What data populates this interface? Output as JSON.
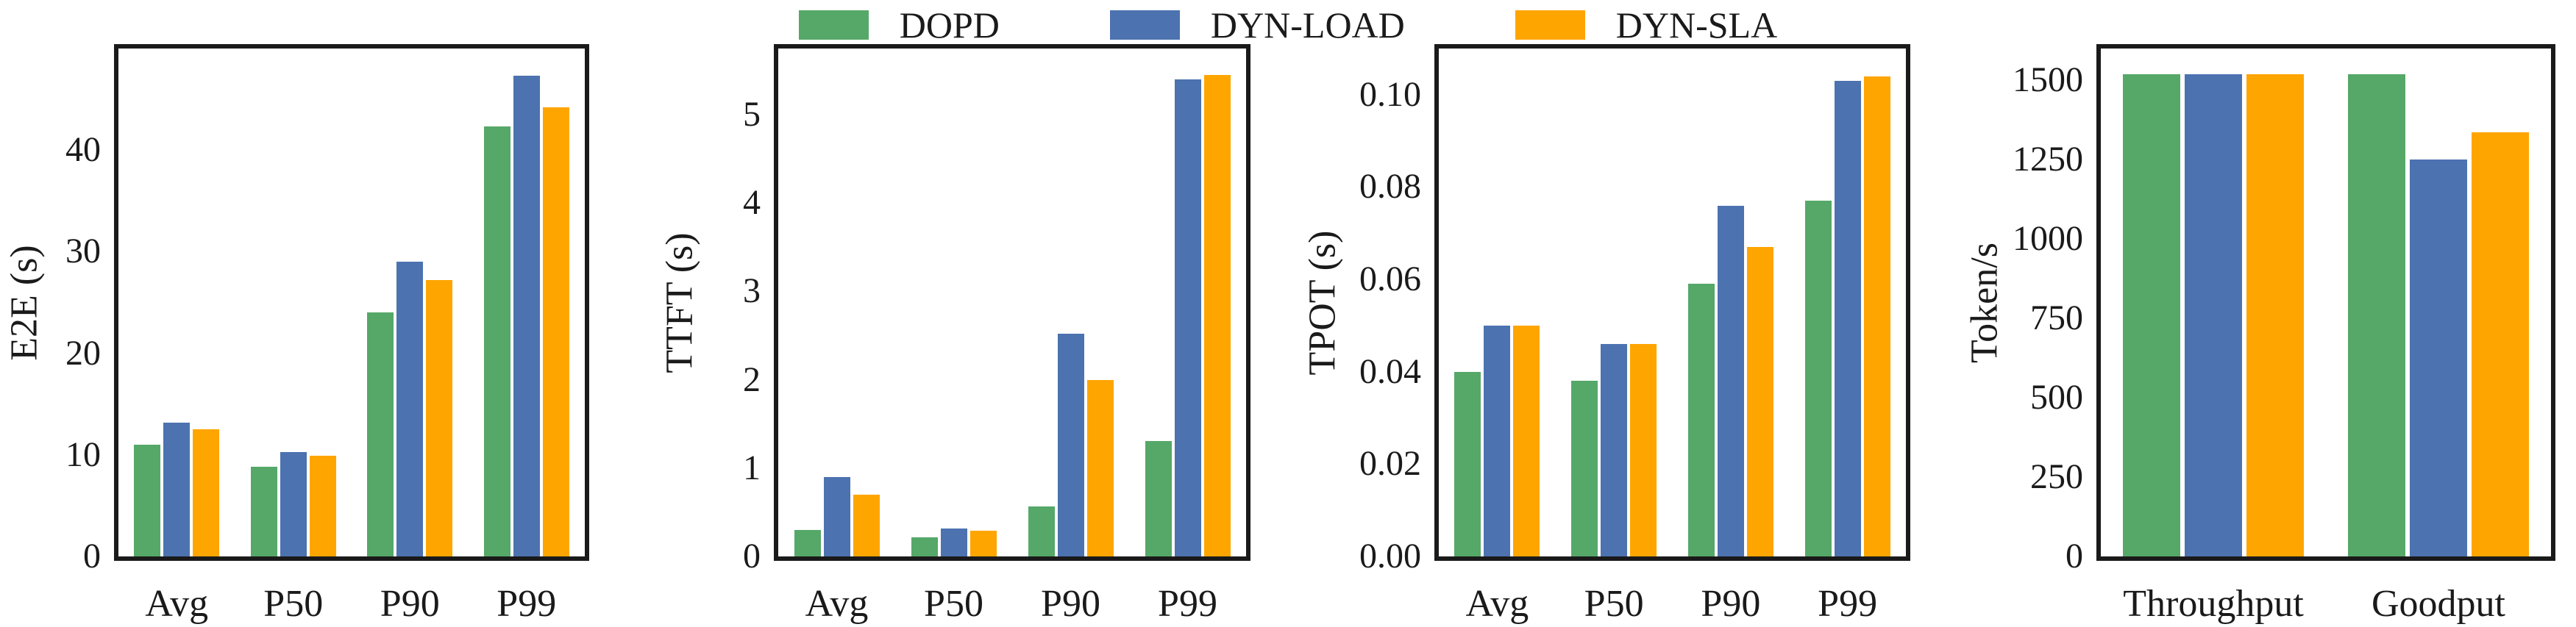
{
  "legend": {
    "position": "top-center",
    "items": [
      {
        "label": "DOPD",
        "color": "#55A868"
      },
      {
        "label": "DYN-LOAD",
        "color": "#4C72B0"
      },
      {
        "label": "DYN-SLA",
        "color": "#FFA500"
      }
    ]
  },
  "colors": {
    "dopd": "#55A868",
    "dyn_load": "#4C72B0",
    "dyn_sla": "#FFA500",
    "spine": "#1a1a1a",
    "text": "#1a1a1a",
    "background": "#ffffff"
  },
  "chart_data": [
    {
      "type": "bar",
      "title": "",
      "xlabel": "",
      "ylabel": "E2E (s)",
      "categories": [
        "Avg",
        "P50",
        "P90",
        "P99"
      ],
      "series": [
        {
          "name": "DOPD",
          "color": "#55A868",
          "values": [
            11.0,
            8.8,
            24.0,
            42.3
          ]
        },
        {
          "name": "DYN-LOAD",
          "color": "#4C72B0",
          "values": [
            13.2,
            10.3,
            29.0,
            47.3
          ]
        },
        {
          "name": "DYN-SLA",
          "color": "#FFA500",
          "values": [
            12.5,
            9.9,
            27.2,
            44.2
          ]
        }
      ],
      "ylim": [
        0,
        50
      ],
      "yticks": [
        {
          "v": 0,
          "label": "0"
        },
        {
          "v": 10,
          "label": "10"
        },
        {
          "v": 20,
          "label": "20"
        },
        {
          "v": 30,
          "label": "30"
        },
        {
          "v": 40,
          "label": "40"
        }
      ],
      "grid": false,
      "legend_position": "top-center-shared"
    },
    {
      "type": "bar",
      "title": "",
      "xlabel": "",
      "ylabel": "TTFT (s)",
      "categories": [
        "Avg",
        "P50",
        "P90",
        "P99"
      ],
      "series": [
        {
          "name": "DOPD",
          "color": "#55A868",
          "values": [
            0.3,
            0.22,
            0.57,
            1.31
          ]
        },
        {
          "name": "DYN-LOAD",
          "color": "#4C72B0",
          "values": [
            0.9,
            0.32,
            2.52,
            5.4
          ]
        },
        {
          "name": "DYN-SLA",
          "color": "#FFA500",
          "values": [
            0.7,
            0.29,
            2.0,
            5.45
          ]
        }
      ],
      "ylim": [
        0,
        5.75
      ],
      "yticks": [
        {
          "v": 0,
          "label": "0"
        },
        {
          "v": 1,
          "label": "1"
        },
        {
          "v": 2,
          "label": "2"
        },
        {
          "v": 3,
          "label": "3"
        },
        {
          "v": 4,
          "label": "4"
        },
        {
          "v": 5,
          "label": "5"
        }
      ],
      "grid": false,
      "legend_position": "top-center-shared"
    },
    {
      "type": "bar",
      "title": "",
      "xlabel": "",
      "ylabel": "TPOT (s)",
      "categories": [
        "Avg",
        "P50",
        "P90",
        "P99"
      ],
      "series": [
        {
          "name": "DOPD",
          "color": "#55A868",
          "values": [
            0.04,
            0.038,
            0.059,
            0.077
          ]
        },
        {
          "name": "DYN-LOAD",
          "color": "#4C72B0",
          "values": [
            0.05,
            0.046,
            0.076,
            0.103
          ]
        },
        {
          "name": "DYN-SLA",
          "color": "#FFA500",
          "values": [
            0.05,
            0.046,
            0.067,
            0.104
          ]
        }
      ],
      "ylim": [
        0,
        0.11
      ],
      "yticks": [
        {
          "v": 0,
          "label": "0.00"
        },
        {
          "v": 0.02,
          "label": "0.02"
        },
        {
          "v": 0.04,
          "label": "0.04"
        },
        {
          "v": 0.06,
          "label": "0.06"
        },
        {
          "v": 0.08,
          "label": "0.08"
        },
        {
          "v": 0.1,
          "label": "0.10"
        }
      ],
      "grid": false,
      "legend_position": "top-center-shared"
    },
    {
      "type": "bar",
      "title": "",
      "xlabel": "",
      "ylabel": "Token/s",
      "categories": [
        "Throughput",
        "Goodput"
      ],
      "series": [
        {
          "name": "DOPD",
          "color": "#55A868",
          "values": [
            1520,
            1520
          ]
        },
        {
          "name": "DYN-LOAD",
          "color": "#4C72B0",
          "values": [
            1518,
            1250
          ]
        },
        {
          "name": "DYN-SLA",
          "color": "#FFA500",
          "values": [
            1520,
            1335
          ]
        }
      ],
      "ylim": [
        0,
        1600
      ],
      "yticks": [
        {
          "v": 0,
          "label": "0"
        },
        {
          "v": 250,
          "label": "250"
        },
        {
          "v": 500,
          "label": "500"
        },
        {
          "v": 750,
          "label": "750"
        },
        {
          "v": 1000,
          "label": "1000"
        },
        {
          "v": 1250,
          "label": "1250"
        },
        {
          "v": 1500,
          "label": "1500"
        }
      ],
      "grid": false,
      "legend_position": "top-center-shared"
    }
  ]
}
